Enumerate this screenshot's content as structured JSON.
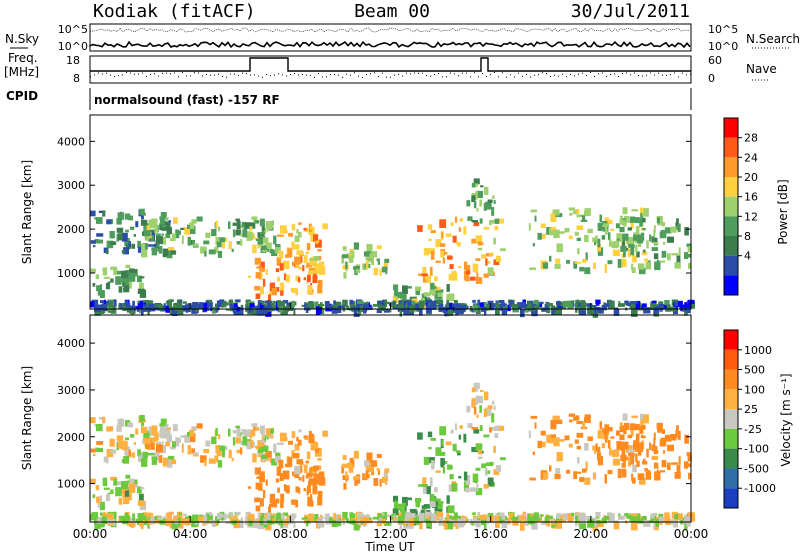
{
  "header": {
    "station": "Kodiak (fitACF)",
    "beam": "Beam 00",
    "date": "30/Jul/2011"
  },
  "noise_panel": {
    "left_label": "N.Sky",
    "right_label": "N.Search",
    "left_ticks": [
      "10^5",
      "10^0"
    ],
    "right_ticks": [
      "10^5",
      "10^0"
    ]
  },
  "freq_panel": {
    "left_label_1": "Freq.",
    "left_label_2": "[MHz]",
    "right_label": "Nave",
    "left_ticks": [
      "18",
      "8"
    ],
    "right_ticks": [
      "60",
      "0"
    ]
  },
  "cpid": {
    "label": "CPID",
    "value": "normalsound (fast) -157 RF"
  },
  "power_panel": {
    "ylabel": "Slant Range [km]",
    "yticks": [
      "4000",
      "3000",
      "2000",
      "1000"
    ],
    "colorbar_label": "Power [dB]",
    "colorbar_ticks": [
      "28",
      "24",
      "20",
      "16",
      "12",
      "8",
      "4"
    ],
    "colors": [
      "#0000ff",
      "#2a4ea6",
      "#3c7d4e",
      "#4f9d5d",
      "#9fd06e",
      "#ffd040",
      "#ff9a2a",
      "#ff5a18",
      "#ff0000"
    ]
  },
  "velocity_panel": {
    "ylabel": "Slant Range [km]",
    "yticks": [
      "4000",
      "3000",
      "2000",
      "1000"
    ],
    "colorbar_label": "Velocity [m s⁻¹]",
    "colorbar_ticks": [
      "1000",
      "500",
      "100",
      "25",
      "-25",
      "-100",
      "-500",
      "-1000"
    ],
    "colors": [
      "#1a3fc0",
      "#2f6ea8",
      "#3a8a4a",
      "#6cc83c",
      "#c8c8c0",
      "#ffb040",
      "#ff8a20",
      "#ff5a10",
      "#ff0000"
    ]
  },
  "xaxis": {
    "ticks": [
      "00:00",
      "04:00",
      "08:00",
      "12:00",
      "16:00",
      "20:00",
      "00:00"
    ],
    "label": "Time UT"
  },
  "chart_data": {
    "type": "heatmap",
    "title": "Kodiak (fitACF) Beam 00 30/Jul/2011",
    "xlabel": "Time UT",
    "ylabel": "Slant Range [km]",
    "xlim": [
      "00:00",
      "24:00"
    ],
    "ylim": [
      180,
      4600
    ],
    "power_scale_db": [
      0,
      32
    ],
    "velocity_scale": [
      -1000,
      1000
    ],
    "grid": false,
    "echo_regions": [
      {
        "name": "A",
        "t": [
          0.0,
          3.2
        ],
        "range": [
          1500,
          2500
        ],
        "power_db": 8,
        "velocity": -25
      },
      {
        "name": "B",
        "t": [
          0.0,
          2.0
        ],
        "range": [
          600,
          1200
        ],
        "power_db": 12,
        "velocity": 25
      },
      {
        "name": "C",
        "t": [
          2.0,
          7.5
        ],
        "range": [
          1500,
          2300
        ],
        "power_db": 14,
        "velocity": -25
      },
      {
        "name": "D",
        "t": [
          6.3,
          9.2
        ],
        "range": [
          500,
          1400
        ],
        "power_db": 24,
        "velocity": -300
      },
      {
        "name": "E",
        "t": [
          7.3,
          9.3
        ],
        "range": [
          1300,
          2200
        ],
        "power_db": 22,
        "velocity": -100
      },
      {
        "name": "F",
        "t": [
          10.0,
          11.8
        ],
        "range": [
          1000,
          1700
        ],
        "power_db": 16,
        "velocity": -100
      },
      {
        "name": "G",
        "t": [
          12.0,
          14.5
        ],
        "range": [
          200,
          800
        ],
        "power_db": 14,
        "velocity": 100
      },
      {
        "name": "H",
        "t": [
          13.0,
          16.5
        ],
        "range": [
          900,
          2300
        ],
        "power_db": 22,
        "velocity": 50
      },
      {
        "name": "I",
        "t": [
          15.0,
          16.2
        ],
        "range": [
          2200,
          3200
        ],
        "power_db": 12,
        "velocity": -25
      },
      {
        "name": "J",
        "t": [
          17.5,
          22.5
        ],
        "range": [
          1100,
          2500
        ],
        "power_db": 16,
        "velocity": -100
      },
      {
        "name": "K",
        "t": [
          21.0,
          24.0
        ],
        "range": [
          1200,
          2300
        ],
        "power_db": 12,
        "velocity": -200
      },
      {
        "name": "L",
        "t": [
          0.0,
          24.0
        ],
        "range": [
          180,
          400
        ],
        "power_db": 6,
        "velocity": 0
      }
    ]
  }
}
